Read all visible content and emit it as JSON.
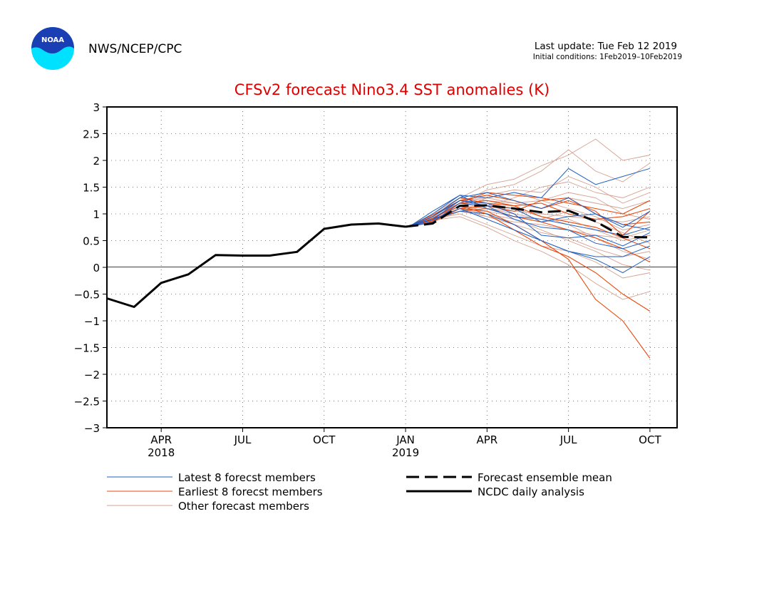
{
  "header": {
    "logo_text": "NOAA",
    "org": "NWS/NCEP/CPC",
    "last_update": "Last update: Tue Feb 12 2019",
    "initial_conditions": "Initial conditions: 1Feb2019–10Feb2019"
  },
  "chart_data": {
    "type": "line",
    "title": "CFSv2 forecast Nino3.4 SST anomalies (K)",
    "xlabel": "",
    "ylabel": "",
    "ylim": [
      -3,
      3
    ],
    "y_ticks": [
      3,
      2.5,
      2,
      1.5,
      1,
      0.5,
      0,
      -0.5,
      -1,
      -1.5,
      -2,
      -2.5,
      -3
    ],
    "y_tick_labels": [
      "3",
      "2.5",
      "2",
      "1.5",
      "1",
      "0.5",
      "0",
      "−0.5",
      "−1",
      "−1.5",
      "−2",
      "−2.5",
      "−3"
    ],
    "x_month_range": [
      0,
      21
    ],
    "x_ticks": [
      {
        "month": 2,
        "label": "APR",
        "year": "2018"
      },
      {
        "month": 5,
        "label": "JUL",
        "year": ""
      },
      {
        "month": 8,
        "label": "OCT",
        "year": ""
      },
      {
        "month": 11,
        "label": "JAN",
        "year": "2019"
      },
      {
        "month": 14,
        "label": "APR",
        "year": ""
      },
      {
        "month": 17,
        "label": "JUL",
        "year": ""
      },
      {
        "month": 20,
        "label": "OCT",
        "year": ""
      }
    ],
    "grid": true,
    "zero_line": true,
    "colors": {
      "latest": "#1f5fc2",
      "earliest": "#e84a10",
      "other": "#d4a191",
      "mean": "#000000",
      "observed": "#000000",
      "title": "#e00000"
    },
    "forecast_x": [
      11,
      11.25,
      12,
      13,
      14,
      15,
      16,
      17,
      18,
      19,
      20
    ],
    "series": [
      {
        "name": "NCDC daily analysis",
        "group": "observed",
        "x": [
          0,
          1,
          2,
          3,
          4,
          5,
          6,
          7,
          8,
          9,
          10,
          11
        ],
        "y": [
          -0.58,
          -0.74,
          -0.29,
          -0.13,
          0.23,
          0.22,
          0.22,
          0.29,
          0.72,
          0.8,
          0.82,
          0.76
        ]
      },
      {
        "name": "Forecast ensemble mean",
        "group": "mean",
        "x": [
          11,
          12,
          13,
          14,
          15,
          16,
          17,
          18,
          19,
          20
        ],
        "y": [
          0.76,
          0.82,
          1.15,
          1.16,
          1.1,
          1.03,
          1.06,
          0.86,
          0.57,
          0.56
        ]
      }
    ],
    "members": {
      "latest": [
        [
          0.76,
          0.78,
          0.95,
          1.3,
          1.4,
          1.25,
          1.1,
          1.3,
          1.0,
          0.75,
          1.05
        ],
        [
          0.76,
          0.77,
          0.9,
          1.25,
          1.2,
          1.0,
          0.6,
          0.55,
          0.6,
          0.4,
          0.65
        ],
        [
          0.76,
          0.79,
          1.0,
          1.35,
          1.1,
          0.95,
          0.9,
          0.8,
          0.7,
          0.6,
          0.75
        ],
        [
          0.76,
          0.78,
          0.9,
          1.1,
          0.9,
          0.7,
          0.5,
          0.3,
          0.15,
          -0.1,
          0.2
        ],
        [
          0.76,
          0.8,
          1.05,
          1.35,
          1.3,
          1.4,
          1.3,
          1.85,
          1.55,
          1.7,
          1.85
        ],
        [
          0.76,
          0.77,
          0.85,
          1.2,
          1.15,
          1.1,
          0.85,
          0.95,
          1.0,
          0.8,
          0.7
        ],
        [
          0.76,
          0.78,
          0.9,
          1.05,
          1.0,
          0.8,
          0.5,
          0.3,
          0.2,
          0.2,
          0.4
        ],
        [
          0.76,
          0.79,
          0.95,
          1.25,
          1.15,
          0.9,
          0.75,
          0.7,
          0.45,
          0.35,
          0.5
        ]
      ],
      "earliest": [
        [
          0.76,
          0.78,
          0.9,
          1.2,
          1.4,
          1.35,
          1.3,
          1.2,
          1.1,
          1.0,
          1.25
        ],
        [
          0.76,
          0.77,
          0.85,
          1.1,
          1.05,
          0.8,
          0.5,
          0.15,
          -0.6,
          -1.0,
          -1.7
        ],
        [
          0.76,
          0.79,
          0.95,
          1.3,
          1.2,
          1.15,
          1.2,
          1.0,
          0.9,
          0.95,
          1.1
        ],
        [
          0.76,
          0.78,
          0.88,
          1.15,
          1.0,
          0.7,
          0.4,
          0.2,
          -0.1,
          -0.5,
          -0.82
        ],
        [
          0.76,
          0.8,
          0.98,
          1.25,
          1.35,
          1.25,
          1.1,
          1.25,
          1.05,
          0.6,
          1.05
        ],
        [
          0.76,
          0.77,
          0.9,
          1.05,
          1.1,
          0.95,
          0.85,
          0.7,
          0.55,
          0.35,
          0.1
        ],
        [
          0.76,
          0.78,
          0.92,
          1.2,
          1.25,
          1.15,
          0.95,
          0.85,
          0.75,
          0.55,
          0.35
        ],
        [
          0.76,
          0.79,
          0.87,
          1.1,
          1.15,
          1.05,
          1.25,
          1.3,
          1.0,
          0.8,
          0.85
        ]
      ],
      "other": [
        [
          0.76,
          0.8,
          1.0,
          1.3,
          1.55,
          1.65,
          1.9,
          2.1,
          2.4,
          2.0,
          2.1
        ],
        [
          0.76,
          0.78,
          0.9,
          1.2,
          1.45,
          1.55,
          1.8,
          2.2,
          1.8,
          1.6,
          1.95
        ],
        [
          0.76,
          0.79,
          0.95,
          1.25,
          1.35,
          1.45,
          1.4,
          1.7,
          1.5,
          1.2,
          1.4
        ],
        [
          0.76,
          0.77,
          0.88,
          1.1,
          1.3,
          1.2,
          1.1,
          1.3,
          1.2,
          1.1,
          1.25
        ],
        [
          0.76,
          0.78,
          0.92,
          1.15,
          1.1,
          1.05,
          1.0,
          0.95,
          0.9,
          0.85,
          0.95
        ],
        [
          0.76,
          0.79,
          0.85,
          1.05,
          0.95,
          0.85,
          0.8,
          0.7,
          0.6,
          0.55,
          0.7
        ],
        [
          0.76,
          0.78,
          0.9,
          1.0,
          0.8,
          0.6,
          0.4,
          0.3,
          0.1,
          -0.2,
          -0.1
        ],
        [
          0.76,
          0.77,
          0.88,
          0.95,
          0.75,
          0.5,
          0.3,
          0.05,
          -0.3,
          -0.6,
          -0.45
        ],
        [
          0.76,
          0.8,
          0.98,
          1.2,
          1.2,
          1.1,
          0.95,
          0.8,
          0.55,
          0.3,
          0.15
        ],
        [
          0.76,
          0.78,
          0.9,
          1.1,
          1.0,
          0.9,
          0.7,
          0.5,
          0.3,
          0.05,
          -0.05
        ],
        [
          0.76,
          0.79,
          0.95,
          1.3,
          1.25,
          1.2,
          1.25,
          1.4,
          1.3,
          1.0,
          0.9
        ],
        [
          0.76,
          0.77,
          0.87,
          1.05,
          1.15,
          1.3,
          1.5,
          1.6,
          1.4,
          1.3,
          1.5
        ],
        [
          0.76,
          0.78,
          0.92,
          1.15,
          1.05,
          0.95,
          0.85,
          0.9,
          0.7,
          0.5,
          0.6
        ],
        [
          0.76,
          0.8,
          0.96,
          1.25,
          1.3,
          1.4,
          1.25,
          1.1,
          0.95,
          0.7,
          0.8
        ],
        [
          0.76,
          0.78,
          0.9,
          1.1,
          0.95,
          0.8,
          0.65,
          0.55,
          0.35,
          0.2,
          0.3
        ],
        [
          0.76,
          0.79,
          0.93,
          1.2,
          1.1,
          1.0,
          0.9,
          1.05,
          0.85,
          0.65,
          0.45
        ]
      ]
    },
    "legend": {
      "placement": "bottom",
      "items": [
        {
          "label": "Latest 8 forecst members",
          "group": "latest"
        },
        {
          "label": "Earliest 8 forecst members",
          "group": "earliest"
        },
        {
          "label": "Other forecast members",
          "group": "other"
        },
        {
          "label": "Forecast ensemble mean",
          "group": "mean"
        },
        {
          "label": "NCDC daily analysis",
          "group": "observed"
        }
      ]
    }
  }
}
